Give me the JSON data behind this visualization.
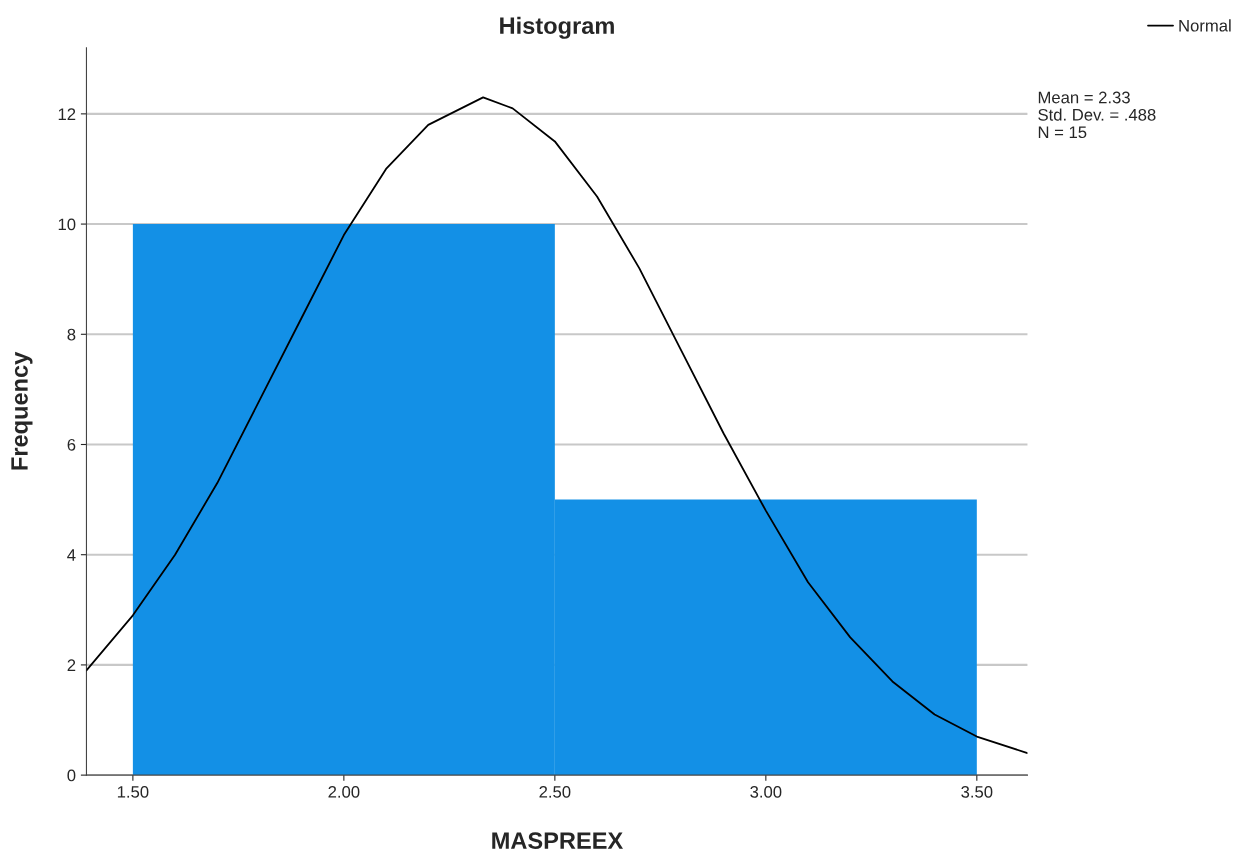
{
  "chart_data": {
    "type": "histogram",
    "title": "Histogram",
    "xlabel": "MASPREEX",
    "ylabel": "Frequency",
    "bins": [
      1.5,
      2.5,
      3.5
    ],
    "series": [
      {
        "color": "#1390e6",
        "values": [
          10,
          5
        ]
      },
      {
        "type": "line",
        "name": "Normal",
        "color": "#000000",
        "x": [
          1.39,
          1.5,
          1.6,
          1.7,
          1.8,
          1.9,
          2.0,
          2.1,
          2.2,
          2.33,
          2.4,
          2.5,
          2.6,
          2.7,
          2.8,
          2.9,
          3.0,
          3.1,
          3.2,
          3.3,
          3.4,
          3.5,
          3.62
        ],
        "values": [
          1.9,
          2.9,
          4.0,
          5.3,
          6.8,
          8.3,
          9.8,
          11.0,
          11.8,
          12.3,
          12.1,
          11.5,
          10.5,
          9.2,
          7.7,
          6.2,
          4.8,
          3.5,
          2.5,
          1.7,
          1.1,
          0.7,
          0.4
        ]
      }
    ],
    "xlim": [
      1.39,
      3.62
    ],
    "ylim": [
      0,
      13.2
    ],
    "xticks": [
      {
        "value": 1.5,
        "label": "1.50"
      },
      {
        "value": 2.0,
        "label": "2.00"
      },
      {
        "value": 2.5,
        "label": "2.50"
      },
      {
        "value": 3.0,
        "label": "3.00"
      },
      {
        "value": 3.5,
        "label": "3.50"
      }
    ],
    "yticks": [
      0,
      2,
      4,
      6,
      8,
      10,
      12
    ],
    "grid": "y",
    "legend": "top right",
    "annotations": [
      "Mean = 2.33",
      "Std. Dev. = .488",
      "N = 15"
    ]
  }
}
